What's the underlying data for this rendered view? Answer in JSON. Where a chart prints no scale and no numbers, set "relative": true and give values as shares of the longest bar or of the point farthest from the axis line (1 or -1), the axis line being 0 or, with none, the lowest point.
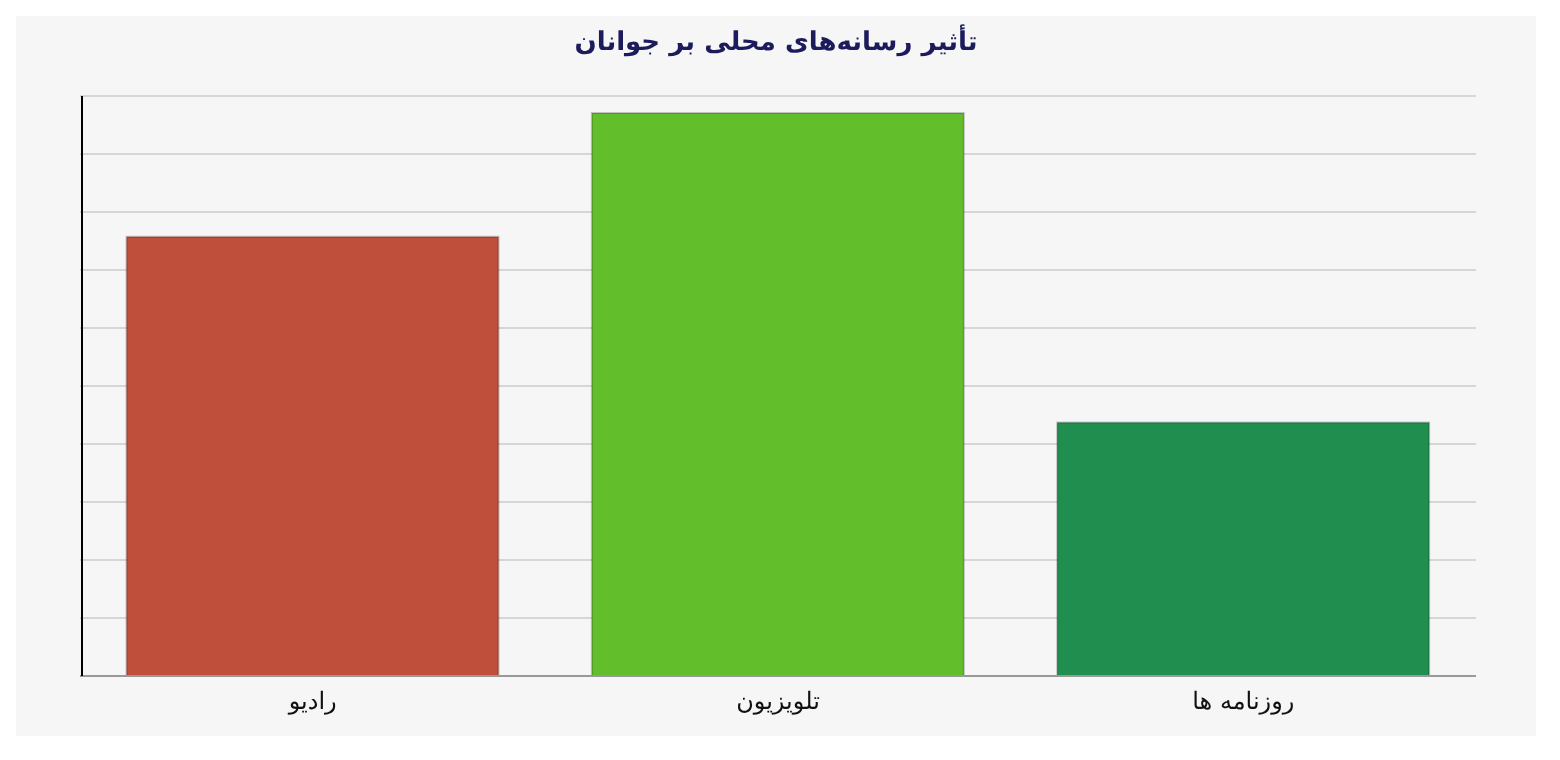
{
  "chart_data": {
    "type": "bar",
    "title": "تأثیر رسانه‌های محلی بر جوانان",
    "categories": [
      "رادیو",
      "تلویزیون",
      "روزنامه ها"
    ],
    "values": [
      0.78,
      1,
      0.45
    ],
    "colors": [
      "#bf4e3a",
      "#62be2a",
      "#1f8e4e"
    ],
    "relative": true,
    "grid": "y"
  }
}
